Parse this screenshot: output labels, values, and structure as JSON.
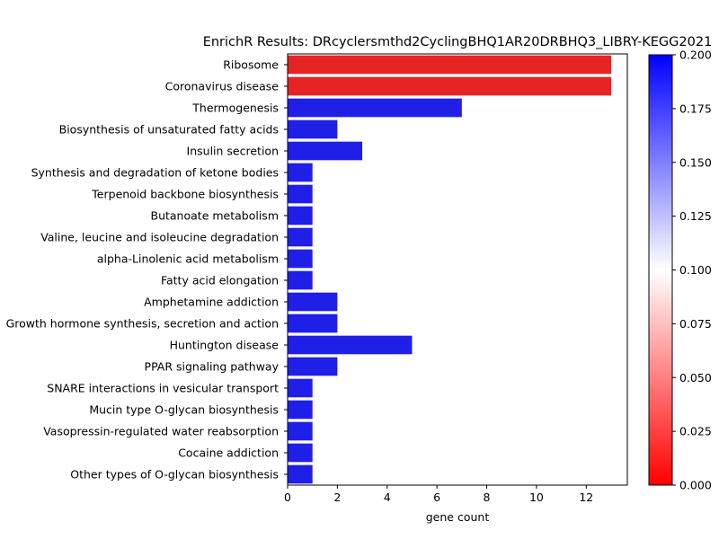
{
  "chart_data": {
    "type": "bar",
    "orientation": "horizontal",
    "title": "EnrichR Results: DRcyclersmthd2CyclingBHQ1AR20DRBHQ3_LIBRY-KEGG2021",
    "xlabel": "gene count",
    "ylabel": "",
    "xlim": [
      0,
      13.65
    ],
    "xticks": [
      0,
      2,
      4,
      6,
      8,
      10,
      12
    ],
    "grid": false,
    "categories": [
      "Ribosome",
      "Coronavirus disease",
      "Thermogenesis",
      "Biosynthesis of unsaturated fatty acids",
      "Insulin secretion",
      "Synthesis and degradation of ketone bodies",
      "Terpenoid backbone biosynthesis",
      "Butanoate metabolism",
      "Valine, leucine and isoleucine degradation",
      "alpha-Linolenic acid metabolism",
      "Fatty acid elongation",
      "Amphetamine addiction",
      "Growth hormone synthesis, secretion and action",
      "Huntington disease",
      "PPAR signaling pathway",
      "SNARE interactions in vesicular transport",
      "Mucin type O-glycan biosynthesis",
      "Vasopressin-regulated water reabsorption",
      "Cocaine addiction",
      "Other types of O-glycan biosynthesis"
    ],
    "values": [
      13,
      13,
      7,
      2,
      3,
      1,
      1,
      1,
      1,
      1,
      1,
      2,
      2,
      5,
      2,
      1,
      1,
      1,
      1,
      1
    ],
    "color_values": [
      0.008,
      0.01,
      0.2,
      0.2,
      0.2,
      0.2,
      0.2,
      0.2,
      0.2,
      0.2,
      0.2,
      0.2,
      0.2,
      0.2,
      0.2,
      0.2,
      0.2,
      0.2,
      0.2,
      0.2
    ],
    "colorbar": {
      "colormap": [
        "#ff0000",
        "#ffffff",
        "#0000ff"
      ],
      "range": [
        0.0,
        0.2
      ],
      "ticks": [
        "0.000",
        "0.025",
        "0.050",
        "0.075",
        "0.100",
        "0.125",
        "0.150",
        "0.175",
        "0.200"
      ]
    },
    "bar_color_high": "#1f1fe8",
    "bar_color_low": "#e62424"
  }
}
